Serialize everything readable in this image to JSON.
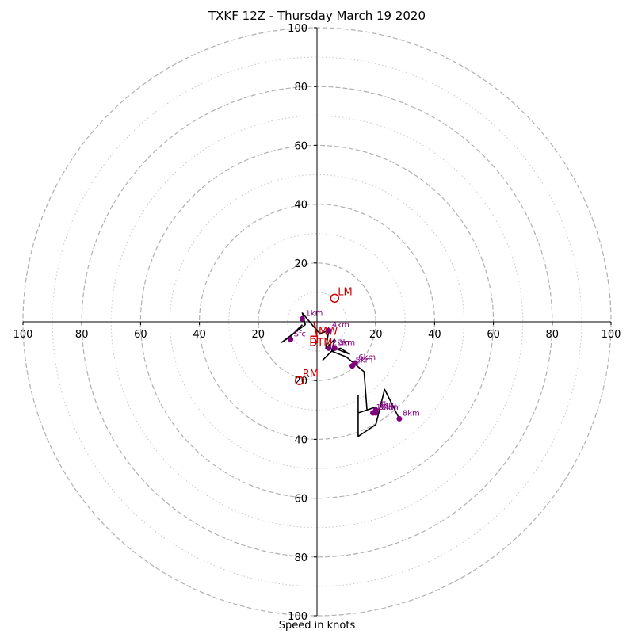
{
  "chart_data": {
    "type": "scatter",
    "title": "TXKF 12Z - Thursday March 19 2020",
    "xlabel": "Speed in knots",
    "ylabel": "",
    "xlim": [
      -100,
      100
    ],
    "ylim": [
      -100,
      100
    ],
    "ring_speeds": [
      20,
      40,
      60,
      80,
      100
    ],
    "minor_ring_speeds": [
      10,
      30,
      50,
      70,
      90
    ],
    "x_tick_labels": [
      "100",
      "80",
      "60",
      "40",
      "20",
      "20",
      "40",
      "60",
      "80",
      "100"
    ],
    "y_tick_labels": [
      "100",
      "80",
      "60",
      "40",
      "20",
      "20",
      "40",
      "60",
      "80",
      "100"
    ],
    "grid": true,
    "colors": {
      "trace": "#000000",
      "height_points": "#800080",
      "motion": "#cc0000",
      "grid": "#b0b0b0"
    },
    "hodograph_trace": [
      {
        "u": -5,
        "v": -1
      },
      {
        "u": -9,
        "v": -5
      },
      {
        "u": -12,
        "v": -7
      },
      {
        "u": -4,
        "v": -1
      },
      {
        "u": -5,
        "v": 3
      },
      {
        "u": 0,
        "v": -3
      },
      {
        "u": 1,
        "v": -4
      },
      {
        "u": 4,
        "v": -3
      },
      {
        "u": 3,
        "v": -9
      },
      {
        "u": 6,
        "v": -6
      },
      {
        "u": 5,
        "v": -10
      },
      {
        "u": 8,
        "v": -9
      },
      {
        "u": 11,
        "v": -11
      },
      {
        "u": 6,
        "v": -9
      },
      {
        "u": 2,
        "v": -13
      },
      {
        "u": 5,
        "v": -10
      },
      {
        "u": 10,
        "v": -12
      },
      {
        "u": 16,
        "v": -17
      },
      {
        "u": 17,
        "v": -30
      },
      {
        "u": 20,
        "v": -29
      },
      {
        "u": 14,
        "v": -31
      },
      {
        "u": 14,
        "v": -25
      },
      {
        "u": 14,
        "v": -39
      },
      {
        "u": 17,
        "v": -37
      },
      {
        "u": 20,
        "v": -35
      },
      {
        "u": 23,
        "v": -23
      },
      {
        "u": 28,
        "v": -33
      }
    ],
    "height_points": [
      {
        "label": "1km",
        "u": -5,
        "v": 1
      },
      {
        "label": "Sfc",
        "u": -9,
        "v": -6
      },
      {
        "label": "4km",
        "u": 4,
        "v": -3
      },
      {
        "label": "2km",
        "u": 4,
        "v": -9
      },
      {
        "label": "3km",
        "u": 6,
        "v": -9
      },
      {
        "label": "5km",
        "u": 12,
        "v": -15
      },
      {
        "label": "6km",
        "u": 13,
        "v": -14
      },
      {
        "label": "7km",
        "u": 20,
        "v": -30
      },
      {
        "label": "9km",
        "u": 20,
        "v": -31
      },
      {
        "label": "10km",
        "u": 19,
        "v": -31
      },
      {
        "label": "8km",
        "u": 28,
        "v": -33
      }
    ],
    "mean_wind_arrow": {
      "from": {
        "u": -1,
        "v": 0
      },
      "to": {
        "u": 0,
        "v": -5
      }
    },
    "storm_motions": [
      {
        "label": "LM",
        "u": 6,
        "v": 8
      },
      {
        "label": "RM",
        "u": -6,
        "v": -20
      },
      {
        "label": "MW",
        "u": 0,
        "v": -5
      },
      {
        "label": "DTM",
        "u": -1,
        "v": -6
      }
    ]
  }
}
